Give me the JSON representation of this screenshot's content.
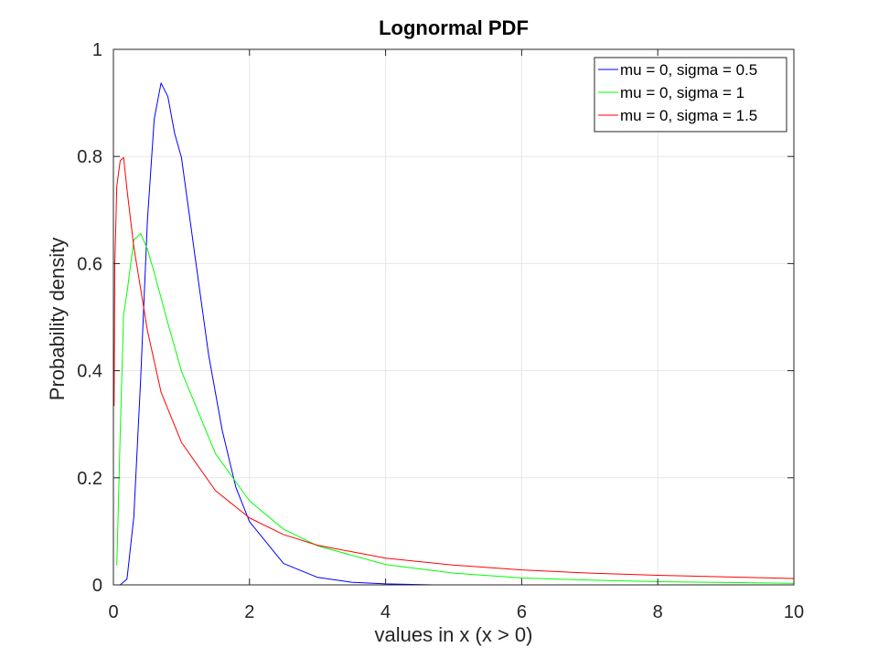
{
  "chart_data": {
    "type": "line",
    "title": "Lognormal PDF",
    "xlabel": "values in x (x > 0)",
    "ylabel": "Probability density",
    "xlim": [
      0,
      10
    ],
    "ylim": [
      0,
      1
    ],
    "xticks": [
      0,
      2,
      4,
      6,
      8,
      10
    ],
    "xtick_labels": [
      "0",
      "2",
      "4",
      "6",
      "8",
      "10"
    ],
    "yticks": [
      0,
      0.2,
      0.4,
      0.6,
      0.8,
      1
    ],
    "ytick_labels": [
      "0",
      "0.2",
      "0.4",
      "0.6",
      "0.8",
      "1"
    ],
    "grid": true,
    "legend_position": "top-right",
    "series": [
      {
        "name": "mu = 0, sigma = 0.5",
        "color": "#0000ff",
        "x": [
          0.1,
          0.2,
          0.3,
          0.4,
          0.5,
          0.6,
          0.7,
          0.8,
          0.9,
          1.0,
          1.2,
          1.4,
          1.6,
          1.8,
          2.0,
          2.5,
          3.0,
          3.5,
          4.0,
          4.7
        ],
        "y": [
          0.0,
          0.011,
          0.127,
          0.383,
          0.681,
          0.87,
          0.937,
          0.912,
          0.843,
          0.798,
          0.613,
          0.429,
          0.288,
          0.182,
          0.118,
          0.04,
          0.014,
          0.005,
          0.002,
          0.0
        ]
      },
      {
        "name": "mu = 0, sigma = 1",
        "color": "#00ff00",
        "x": [
          0.05,
          0.1,
          0.15,
          0.2,
          0.3,
          0.4,
          0.5,
          0.6,
          0.8,
          1.0,
          1.5,
          2.0,
          2.5,
          3.0,
          4.0,
          5.0,
          6.0,
          7.0,
          8.0,
          10.0
        ],
        "y": [
          0.036,
          0.282,
          0.505,
          0.546,
          0.644,
          0.656,
          0.627,
          0.583,
          0.489,
          0.399,
          0.245,
          0.157,
          0.104,
          0.073,
          0.038,
          0.022,
          0.013,
          0.009,
          0.006,
          0.003
        ]
      },
      {
        "name": "mu = 0, sigma = 1.5",
        "color": "#ff0000",
        "x": [
          0.01,
          0.02,
          0.05,
          0.1,
          0.15,
          0.2,
          0.3,
          0.5,
          0.7,
          1.0,
          1.5,
          2.0,
          2.5,
          3.0,
          4.0,
          5.0,
          6.0,
          7.0,
          8.0,
          10.0
        ],
        "y": [
          0.334,
          0.595,
          0.745,
          0.792,
          0.798,
          0.738,
          0.631,
          0.475,
          0.36,
          0.266,
          0.176,
          0.125,
          0.094,
          0.074,
          0.05,
          0.037,
          0.028,
          0.022,
          0.018,
          0.012
        ]
      }
    ]
  }
}
